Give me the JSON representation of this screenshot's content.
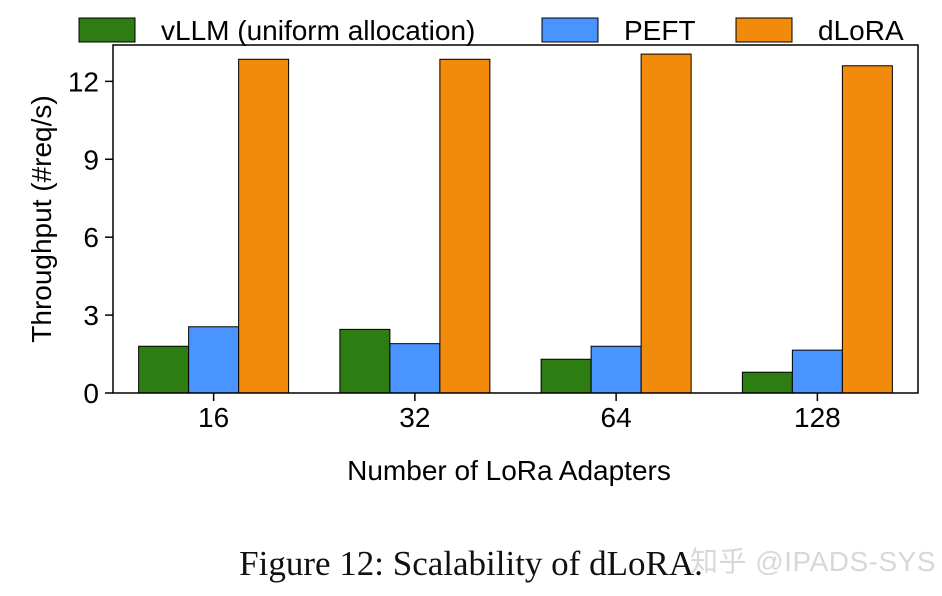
{
  "chart_data": {
    "type": "bar",
    "categories": [
      "16",
      "32",
      "64",
      "128"
    ],
    "series": [
      {
        "name": "vLLM (uniform allocation)",
        "color": "#2e7d13",
        "values": [
          1.8,
          2.45,
          1.3,
          0.8
        ]
      },
      {
        "name": "PEFT",
        "color": "#4a94ff",
        "values": [
          2.55,
          1.9,
          1.8,
          1.65
        ]
      },
      {
        "name": "dLoRA",
        "color": "#f28a0b",
        "values": [
          12.85,
          12.85,
          13.05,
          12.6
        ]
      }
    ],
    "xlabel": "Number of LoRa Adapters",
    "ylabel": "Throughput (#req/s)",
    "ylim": [
      0,
      13.4
    ],
    "yticks": [
      0,
      3,
      6,
      9,
      12
    ],
    "legend": "top"
  },
  "caption": "Figure 12: Scalability of dLoRA.",
  "watermark": "知乎 @IPADS-SYS"
}
